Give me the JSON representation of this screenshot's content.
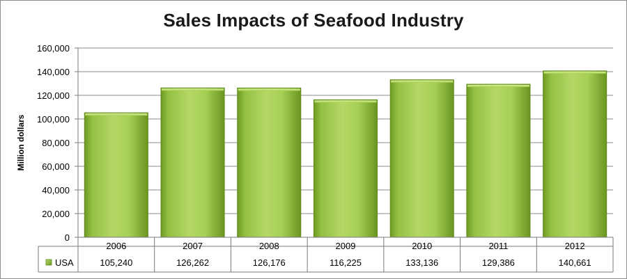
{
  "chart_data": {
    "type": "bar",
    "title": "Sales Impacts of Seafood Industry",
    "ylabel": "Million dollars",
    "xlabel": "",
    "categories": [
      "2006",
      "2007",
      "2008",
      "2009",
      "2010",
      "2011",
      "2012"
    ],
    "series": [
      {
        "name": "USA",
        "values": [
          105240,
          126262,
          126176,
          116225,
          133136,
          129386,
          140661
        ],
        "value_labels": [
          "105,240",
          "126,262",
          "126,176",
          "116,225",
          "133,136",
          "129,386",
          "140,661"
        ],
        "color": "#8cb83b"
      }
    ],
    "ylim": [
      0,
      160000
    ],
    "yticks": [
      0,
      20000,
      40000,
      60000,
      80000,
      100000,
      120000,
      140000,
      160000
    ],
    "ytick_labels": [
      "0",
      "20,000",
      "40,000",
      "60,000",
      "80,000",
      "100,000",
      "120,000",
      "140,000",
      "160,000"
    ],
    "grid": true,
    "legend": "data table below chart"
  }
}
